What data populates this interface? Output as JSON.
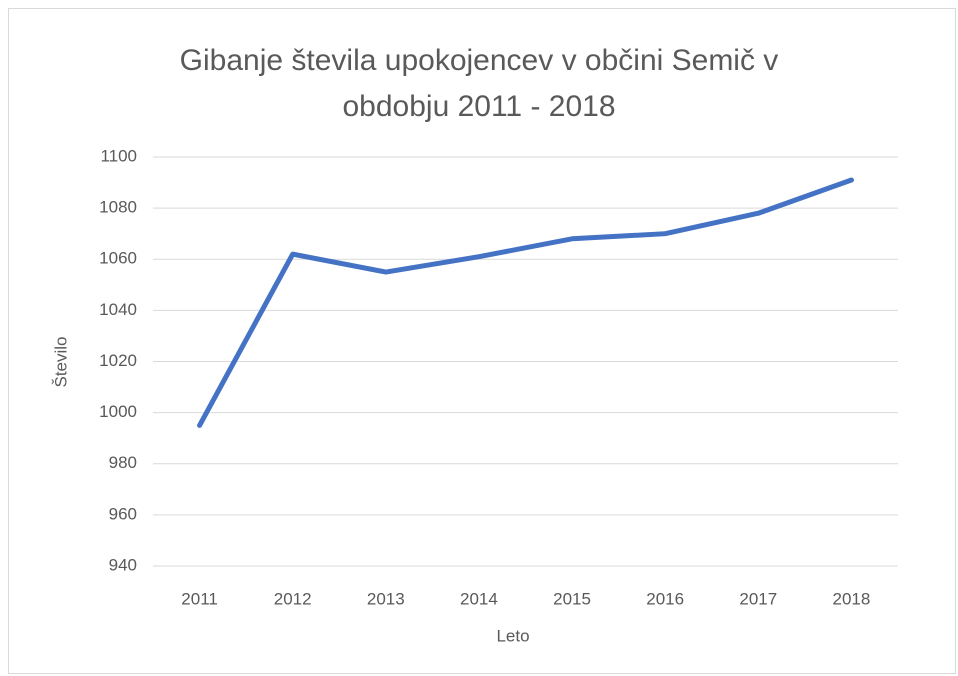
{
  "chart_data": {
    "type": "line",
    "title": "Gibanje števila upokojencev v občini Semič v obdobju 2011 - 2018",
    "x_label": "Leto",
    "y_label": "Število",
    "categories": [
      "2011",
      "2012",
      "2013",
      "2014",
      "2015",
      "2016",
      "2017",
      "2018"
    ],
    "series": [
      {
        "color": "#4472c4",
        "values": [
          995,
          1062,
          1055,
          1061,
          1068,
          1070,
          1078,
          1091
        ]
      }
    ],
    "ylim": [
      940,
      1100
    ],
    "yticks": [
      940,
      960,
      980,
      1000,
      1020,
      1040,
      1060,
      1080,
      1100
    ],
    "grid": true
  }
}
